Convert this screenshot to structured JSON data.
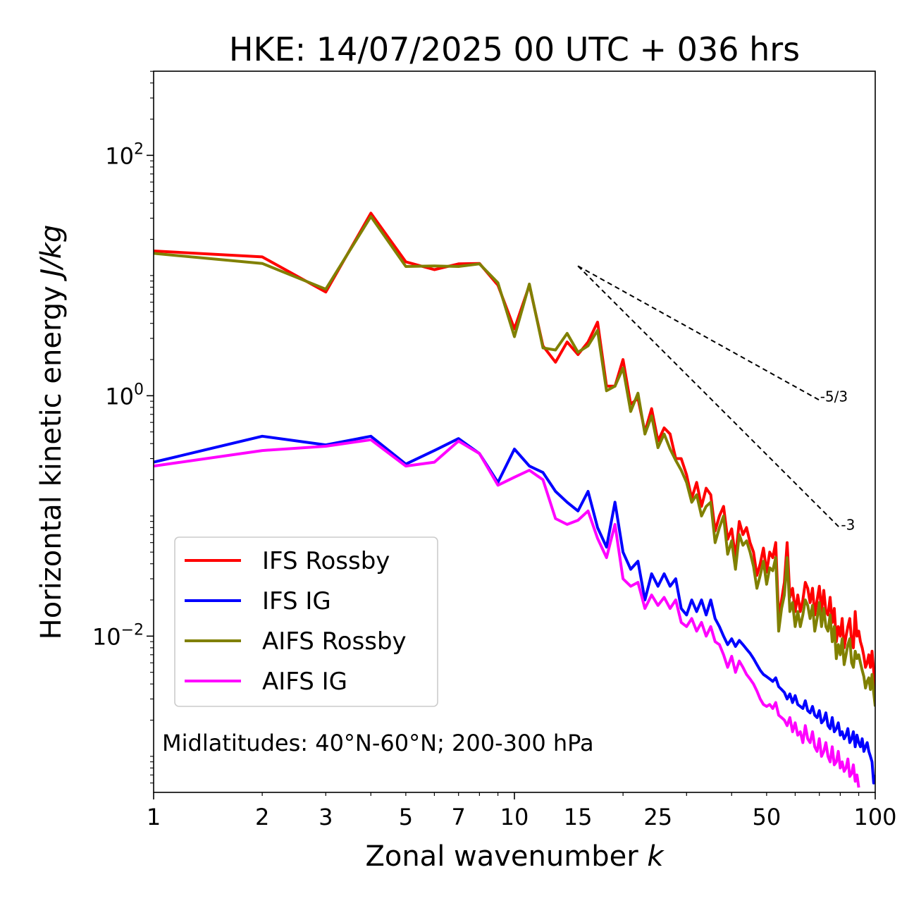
{
  "chart_data": {
    "type": "line",
    "title": "HKE: 14/07/2025 00 UTC + 036 hrs",
    "xlabel_text": "Zonal wavenumber ",
    "xlabel_var": "k",
    "ylabel_text": "Horizontal kinetic energy ",
    "ylabel_unit": "J/kg",
    "xscale": "log",
    "yscale": "log",
    "xlim": [
      1,
      100
    ],
    "ylim_log10": [
      -3.3,
      2.7
    ],
    "x_ticks": [
      {
        "value": 1,
        "label": "1"
      },
      {
        "value": 2,
        "label": "2"
      },
      {
        "value": 3,
        "label": "3"
      },
      {
        "value": 5,
        "label": "5"
      },
      {
        "value": 7,
        "label": "7"
      },
      {
        "value": 10,
        "label": "10"
      },
      {
        "value": 15,
        "label": "15"
      },
      {
        "value": 25,
        "label": "25"
      },
      {
        "value": 50,
        "label": "50"
      },
      {
        "value": 100,
        "label": "100"
      }
    ],
    "y_ticks": [
      {
        "exp": 2,
        "base": "10",
        "sup": "2"
      },
      {
        "exp": 0,
        "base": "10",
        "sup": "0"
      },
      {
        "exp": -2,
        "base": "10",
        "sup": "−2"
      }
    ],
    "annotation": "Midlatitudes: 40°N-60°N; 200-300 hPa",
    "legend_position": "lower-left",
    "reference_lines": [
      {
        "name": "minus-five-thirds",
        "label": "-5/3",
        "x": [
          15,
          70
        ],
        "y": [
          12.0,
          0.92
        ]
      },
      {
        "name": "minus-three",
        "label": "-3",
        "x": [
          15,
          80
        ],
        "y": [
          12.0,
          0.079
        ]
      }
    ],
    "series": [
      {
        "name": "IFS Rossby",
        "color": "#ff0000",
        "x": [
          1,
          2,
          3,
          4,
          5,
          6,
          7,
          8,
          9,
          10,
          11,
          12,
          13,
          14,
          15,
          16,
          17,
          18,
          19,
          20,
          21,
          22,
          23,
          24,
          25,
          26,
          27,
          28,
          29,
          30,
          31,
          32,
          33,
          34,
          35,
          36,
          37,
          38,
          39,
          40,
          41,
          42,
          43,
          44,
          45,
          46,
          47,
          48,
          49,
          50,
          51,
          52,
          53,
          54,
          55,
          56,
          57,
          58,
          59,
          60,
          61,
          62,
          63,
          64,
          65,
          66,
          67,
          68,
          69,
          70,
          71,
          72,
          73,
          74,
          75,
          76,
          77,
          78,
          79,
          80,
          81,
          82,
          83,
          84,
          85,
          86,
          87,
          88,
          89,
          90,
          91,
          92,
          93,
          94,
          95,
          96,
          97,
          98,
          99,
          100
        ],
        "y": [
          16.0,
          14.3,
          7.3,
          33.0,
          13.0,
          11.2,
          12.5,
          12.6,
          8.3,
          3.6,
          8.3,
          2.6,
          1.9,
          2.8,
          2.2,
          2.8,
          4.1,
          1.2,
          1.2,
          2.0,
          0.85,
          0.95,
          0.5,
          0.78,
          0.42,
          0.54,
          0.48,
          0.3,
          0.3,
          0.22,
          0.14,
          0.19,
          0.12,
          0.17,
          0.15,
          0.075,
          0.1,
          0.12,
          0.064,
          0.078,
          0.045,
          0.09,
          0.07,
          0.08,
          0.06,
          0.05,
          0.032,
          0.04,
          0.054,
          0.034,
          0.05,
          0.045,
          0.06,
          0.014,
          0.02,
          0.028,
          0.06,
          0.021,
          0.025,
          0.016,
          0.022,
          0.016,
          0.02,
          0.028,
          0.025,
          0.019,
          0.025,
          0.015,
          0.02,
          0.026,
          0.016,
          0.024,
          0.016,
          0.015,
          0.021,
          0.013,
          0.017,
          0.009,
          0.012,
          0.01,
          0.014,
          0.008,
          0.01,
          0.012,
          0.014,
          0.009,
          0.008,
          0.016,
          0.01,
          0.011,
          0.009,
          0.008,
          0.0068,
          0.0055,
          0.006,
          0.007,
          0.0055,
          0.0075,
          0.0052,
          0.0035
        ]
      },
      {
        "name": "IFS IG",
        "color": "#0000ff",
        "x": [
          1,
          2,
          3,
          4,
          5,
          6,
          7,
          8,
          9,
          10,
          11,
          12,
          13,
          14,
          15,
          16,
          17,
          18,
          19,
          20,
          21,
          22,
          23,
          24,
          25,
          26,
          27,
          28,
          29,
          30,
          31,
          32,
          33,
          34,
          35,
          36,
          37,
          38,
          39,
          40,
          41,
          42,
          43,
          44,
          45,
          46,
          47,
          48,
          49,
          50,
          51,
          52,
          53,
          54,
          55,
          56,
          57,
          58,
          59,
          60,
          61,
          62,
          63,
          64,
          65,
          66,
          67,
          68,
          69,
          70,
          71,
          72,
          73,
          74,
          75,
          76,
          77,
          78,
          79,
          80,
          81,
          82,
          83,
          84,
          85,
          86,
          87,
          88,
          89,
          90,
          91,
          92,
          93,
          94,
          95,
          96,
          97,
          98,
          99,
          100
        ],
        "y": [
          0.28,
          0.46,
          0.39,
          0.46,
          0.27,
          0.35,
          0.44,
          0.33,
          0.19,
          0.36,
          0.26,
          0.23,
          0.16,
          0.13,
          0.11,
          0.16,
          0.08,
          0.055,
          0.13,
          0.05,
          0.036,
          0.042,
          0.02,
          0.033,
          0.026,
          0.033,
          0.026,
          0.03,
          0.017,
          0.015,
          0.02,
          0.016,
          0.02,
          0.015,
          0.02,
          0.014,
          0.012,
          0.01,
          0.0085,
          0.0095,
          0.0082,
          0.0092,
          0.0085,
          0.0078,
          0.0072,
          0.0065,
          0.0058,
          0.0052,
          0.0048,
          0.0046,
          0.0044,
          0.0042,
          0.0045,
          0.0038,
          0.0036,
          0.0034,
          0.003,
          0.0033,
          0.0028,
          0.0032,
          0.0027,
          0.0026,
          0.0025,
          0.0029,
          0.0024,
          0.0023,
          0.0026,
          0.0022,
          0.0021,
          0.0024,
          0.0019,
          0.002,
          0.0023,
          0.0018,
          0.0017,
          0.0021,
          0.0016,
          0.0017,
          0.0019,
          0.0015,
          0.0016,
          0.0014,
          0.0015,
          0.0017,
          0.0013,
          0.0014,
          0.0016,
          0.0012,
          0.0015,
          0.0013,
          0.0012,
          0.0014,
          0.0011,
          0.0012,
          0.0013,
          0.0011,
          0.001,
          0.0009,
          0.0006,
          0.0007
        ]
      },
      {
        "name": "AIFS Rossby",
        "color": "#808000",
        "x": [
          1,
          2,
          3,
          4,
          5,
          6,
          7,
          8,
          9,
          10,
          11,
          12,
          13,
          14,
          15,
          16,
          17,
          18,
          19,
          20,
          21,
          22,
          23,
          24,
          25,
          26,
          27,
          28,
          29,
          30,
          31,
          32,
          33,
          34,
          35,
          36,
          37,
          38,
          39,
          40,
          41,
          42,
          43,
          44,
          45,
          46,
          47,
          48,
          49,
          50,
          51,
          52,
          53,
          54,
          55,
          56,
          57,
          58,
          59,
          60,
          61,
          62,
          63,
          64,
          65,
          66,
          67,
          68,
          69,
          70,
          71,
          72,
          73,
          74,
          75,
          76,
          77,
          78,
          79,
          80,
          81,
          82,
          83,
          84,
          85,
          86,
          87,
          88,
          89,
          90,
          91,
          92,
          93,
          94,
          95,
          96,
          97,
          98,
          99,
          100
        ],
        "y": [
          15.3,
          12.6,
          7.7,
          31.0,
          11.9,
          12.0,
          11.9,
          12.5,
          8.7,
          3.1,
          8.5,
          2.5,
          2.4,
          3.3,
          2.3,
          2.6,
          3.5,
          1.1,
          1.2,
          1.7,
          0.74,
          1.05,
          0.48,
          0.68,
          0.37,
          0.48,
          0.36,
          0.29,
          0.24,
          0.19,
          0.13,
          0.15,
          0.1,
          0.12,
          0.13,
          0.06,
          0.08,
          0.1,
          0.048,
          0.062,
          0.036,
          0.07,
          0.057,
          0.062,
          0.05,
          0.038,
          0.025,
          0.032,
          0.042,
          0.027,
          0.037,
          0.035,
          0.045,
          0.011,
          0.017,
          0.022,
          0.045,
          0.016,
          0.019,
          0.012,
          0.016,
          0.012,
          0.015,
          0.02,
          0.018,
          0.014,
          0.018,
          0.011,
          0.014,
          0.019,
          0.012,
          0.017,
          0.012,
          0.011,
          0.015,
          0.009,
          0.012,
          0.0065,
          0.0085,
          0.007,
          0.0095,
          0.0058,
          0.007,
          0.0085,
          0.0095,
          0.006,
          0.0055,
          0.0075,
          0.0065,
          0.007,
          0.006,
          0.0052,
          0.0046,
          0.0037,
          0.0042,
          0.0045,
          0.0036,
          0.0048,
          0.0034,
          0.0026
        ]
      },
      {
        "name": "AIFS IG",
        "color": "#ff00ff",
        "x": [
          1,
          2,
          3,
          4,
          5,
          6,
          7,
          8,
          9,
          10,
          11,
          12,
          13,
          14,
          15,
          16,
          17,
          18,
          19,
          20,
          21,
          22,
          23,
          24,
          25,
          26,
          27,
          28,
          29,
          30,
          31,
          32,
          33,
          34,
          35,
          36,
          37,
          38,
          39,
          40,
          41,
          42,
          43,
          44,
          45,
          46,
          47,
          48,
          49,
          50,
          51,
          52,
          53,
          54,
          55,
          56,
          57,
          58,
          59,
          60,
          61,
          62,
          63,
          64,
          65,
          66,
          67,
          68,
          69,
          70,
          71,
          72,
          73,
          74,
          75,
          76,
          77,
          78,
          79,
          80,
          81,
          82,
          83,
          84,
          85,
          86,
          87,
          88,
          89,
          90
        ],
        "y": [
          0.26,
          0.35,
          0.38,
          0.43,
          0.26,
          0.28,
          0.42,
          0.33,
          0.18,
          0.21,
          0.24,
          0.2,
          0.095,
          0.085,
          0.092,
          0.11,
          0.065,
          0.045,
          0.085,
          0.03,
          0.026,
          0.028,
          0.017,
          0.022,
          0.018,
          0.021,
          0.017,
          0.02,
          0.013,
          0.012,
          0.014,
          0.011,
          0.013,
          0.01,
          0.012,
          0.009,
          0.0085,
          0.007,
          0.0055,
          0.0068,
          0.005,
          0.0062,
          0.0055,
          0.0048,
          0.0044,
          0.004,
          0.0035,
          0.003,
          0.0027,
          0.0026,
          0.0027,
          0.0025,
          0.0028,
          0.0022,
          0.0021,
          0.002,
          0.0018,
          0.0021,
          0.0016,
          0.0019,
          0.0015,
          0.0016,
          0.0013,
          0.0018,
          0.0014,
          0.0013,
          0.0016,
          0.0012,
          0.0011,
          0.0014,
          0.001,
          0.0011,
          0.0013,
          0.001,
          0.0009,
          0.0012,
          0.00085,
          0.0009,
          0.0011,
          0.0008,
          0.0009,
          0.00075,
          0.0008,
          0.00095,
          0.00068,
          0.00072,
          0.00085,
          0.00062,
          0.0007,
          0.00055
        ]
      }
    ]
  }
}
